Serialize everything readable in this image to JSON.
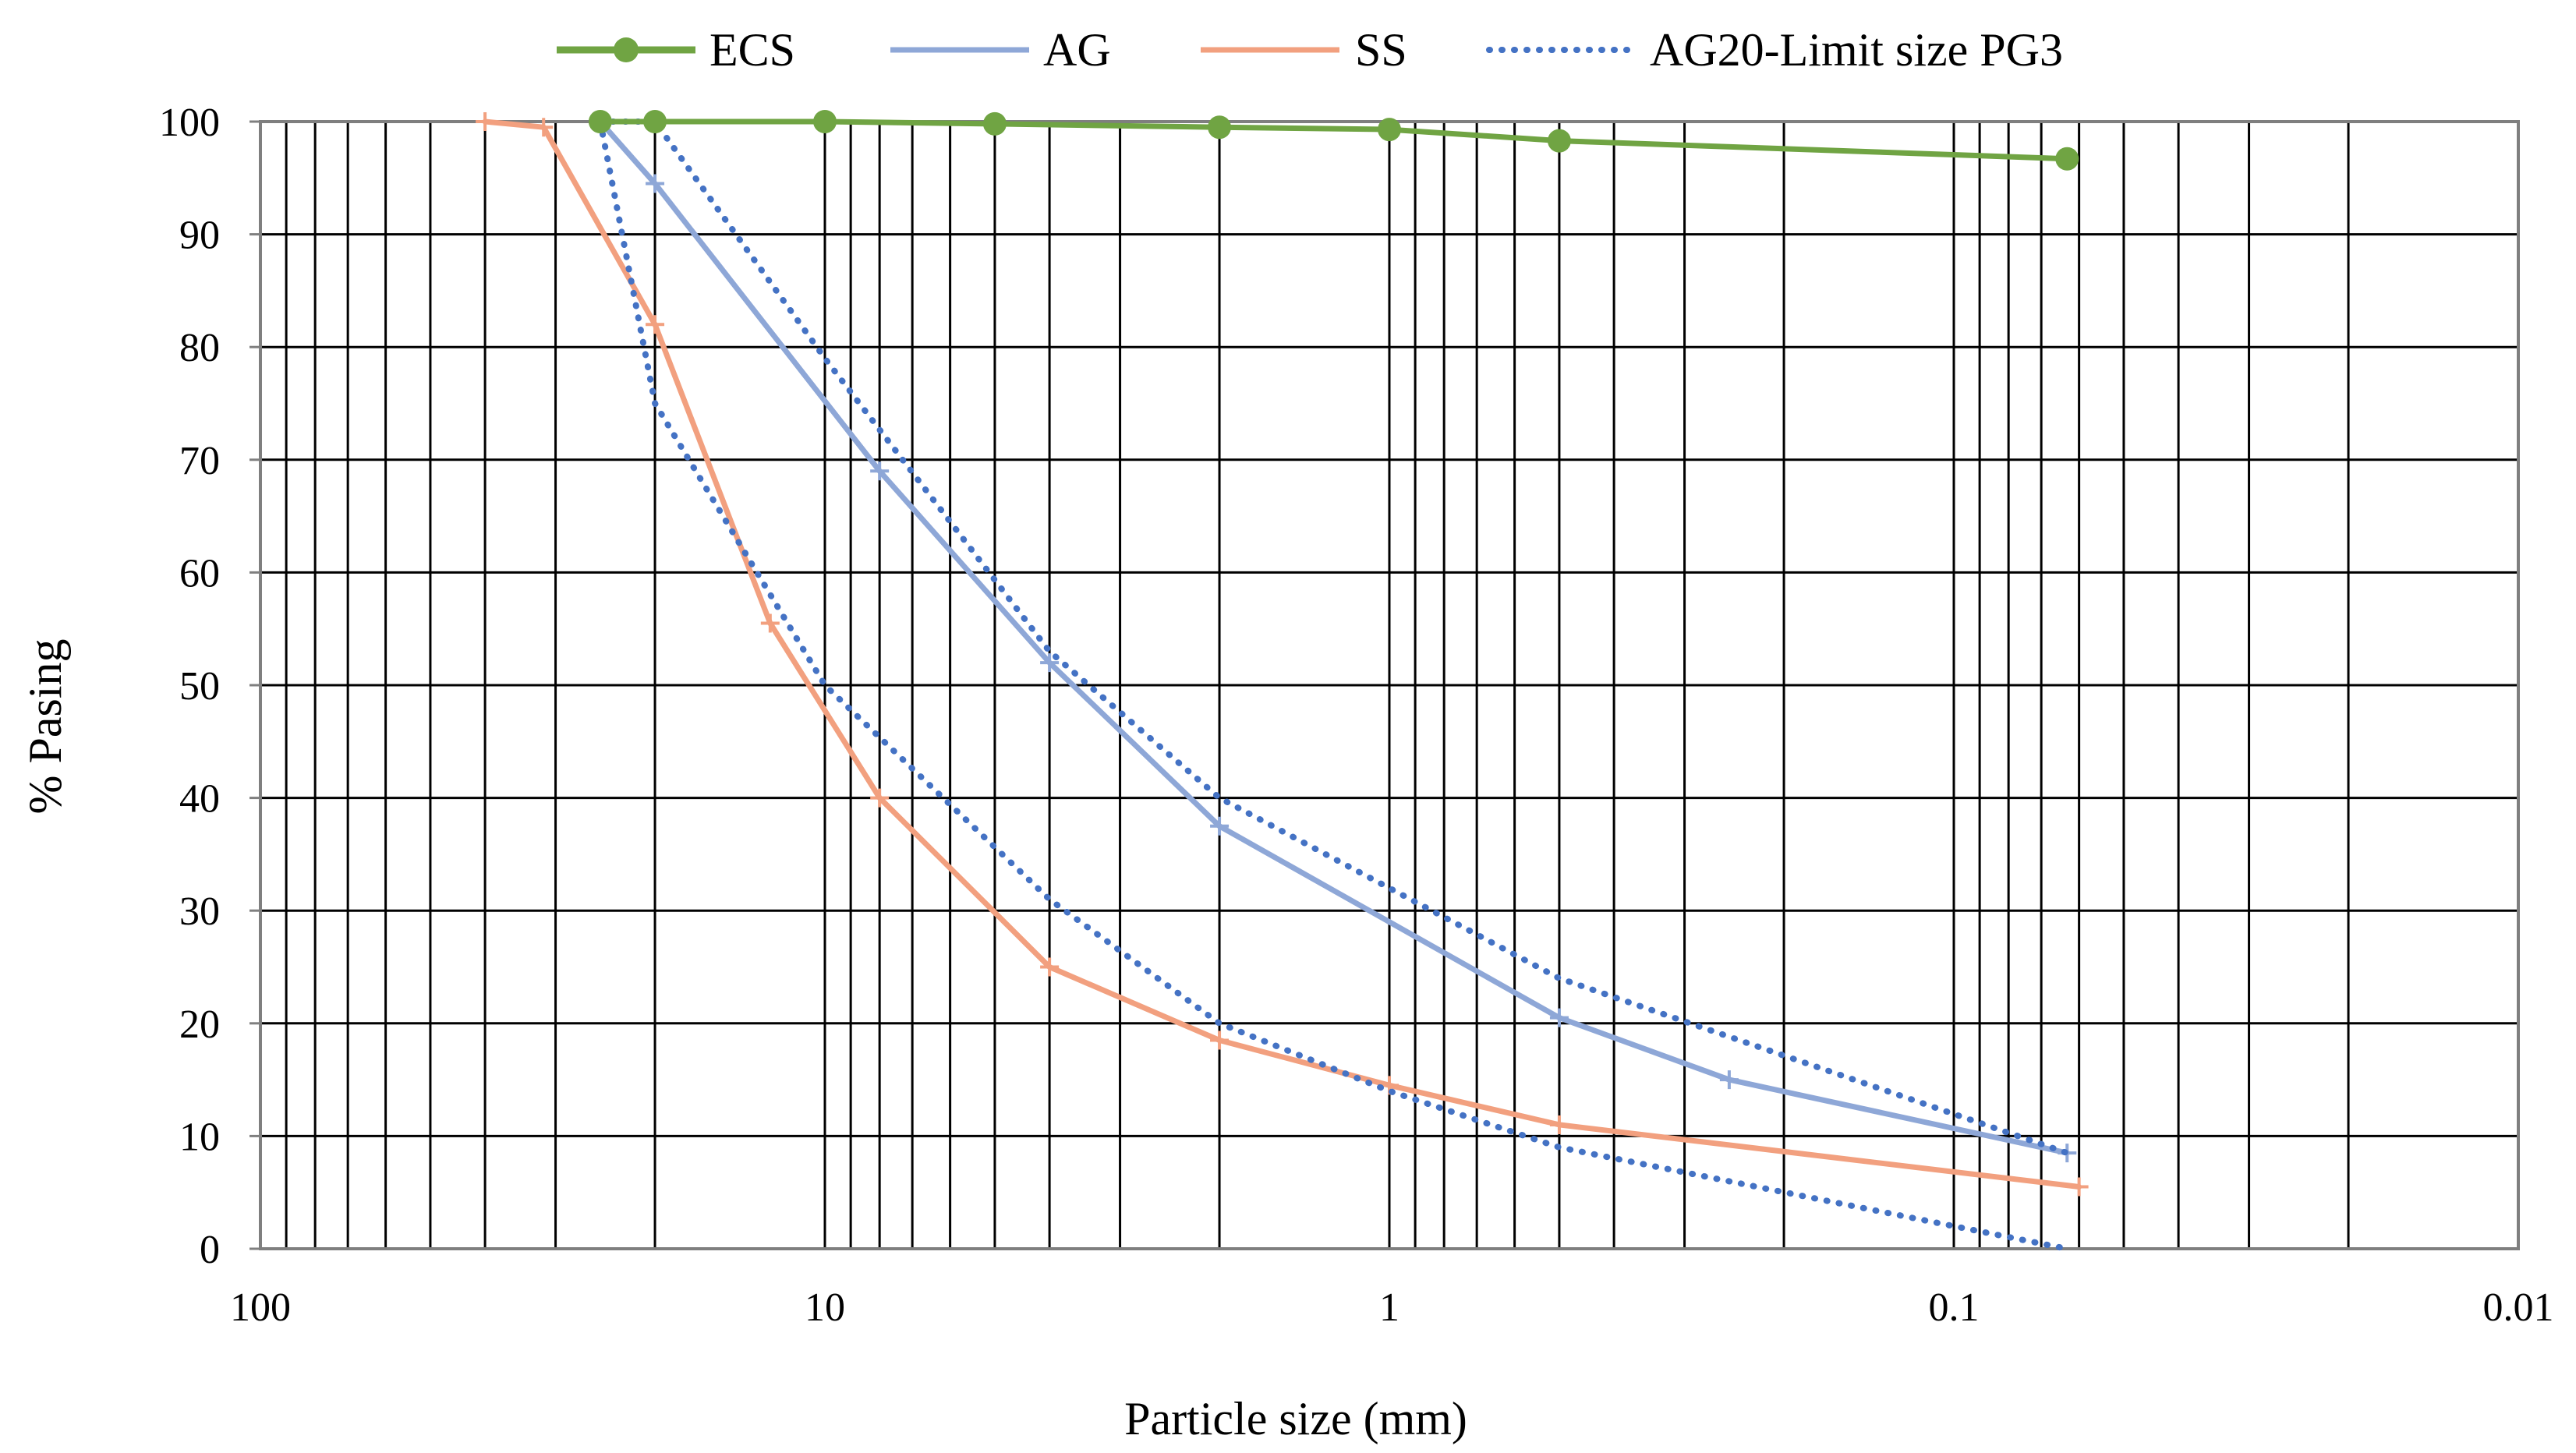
{
  "chart_data": {
    "type": "line",
    "xscale": "log",
    "x_reversed": true,
    "xlim": [
      100,
      0.01
    ],
    "ylim": [
      0,
      100
    ],
    "grid": true,
    "xlabel": "Particle size (mm)",
    "ylabel": "% Pasing",
    "legend_position": "top",
    "x_ticks": [
      {
        "value": 100,
        "label": "100"
      },
      {
        "value": 10,
        "label": "10"
      },
      {
        "value": 1,
        "label": "1"
      },
      {
        "value": 0.1,
        "label": "0.1"
      },
      {
        "value": 0.01,
        "label": "0.01"
      }
    ],
    "y_ticks": [
      {
        "value": 0,
        "label": "0"
      },
      {
        "value": 10,
        "label": "10"
      },
      {
        "value": 20,
        "label": "20"
      },
      {
        "value": 30,
        "label": "30"
      },
      {
        "value": 40,
        "label": "40"
      },
      {
        "value": 50,
        "label": "50"
      },
      {
        "value": 60,
        "label": "60"
      },
      {
        "value": 70,
        "label": "70"
      },
      {
        "value": 80,
        "label": "80"
      },
      {
        "value": 90,
        "label": "90"
      },
      {
        "value": 100,
        "label": "100"
      }
    ],
    "series": [
      {
        "name": "ECS",
        "color": "#70a443",
        "style": "solid",
        "marker": "circle",
        "points": [
          [
            25,
            100
          ],
          [
            20,
            100
          ],
          [
            10,
            100
          ],
          [
            5,
            99.8
          ],
          [
            2,
            99.5
          ],
          [
            1,
            99.3
          ],
          [
            0.5,
            98.3
          ],
          [
            0.063,
            96.7
          ]
        ]
      },
      {
        "name": "AG",
        "color": "#8ea7d7",
        "style": "solid",
        "marker": "plus",
        "points": [
          [
            25,
            100
          ],
          [
            20,
            94.5
          ],
          [
            8,
            69
          ],
          [
            4,
            52
          ],
          [
            2,
            37.5
          ],
          [
            0.5,
            20.5
          ],
          [
            0.25,
            15
          ],
          [
            0.063,
            8.5
          ]
        ]
      },
      {
        "name": "SS",
        "color": "#f2a07f",
        "style": "solid",
        "marker": "plus",
        "points": [
          [
            40,
            100
          ],
          [
            31.5,
            99.5
          ],
          [
            20,
            82
          ],
          [
            12.5,
            55.5
          ],
          [
            8,
            40
          ],
          [
            4,
            25
          ],
          [
            2,
            18.5
          ],
          [
            1,
            14.5
          ],
          [
            0.5,
            11
          ],
          [
            0.06,
            5.5
          ]
        ]
      },
      {
        "name": "AG20-Limit size PG3",
        "color": "#4472c4",
        "style": "dotted",
        "marker": "none",
        "segments": [
          [
            [
              25,
              100
            ],
            [
              20,
              100
            ],
            [
              10,
              79
            ],
            [
              4,
              53
            ],
            [
              2,
              40
            ],
            [
              1,
              32
            ],
            [
              0.5,
              24
            ],
            [
              0.063,
              8.5
            ]
          ],
          [
            [
              25,
              100
            ],
            [
              20,
              75
            ],
            [
              10,
              50
            ],
            [
              4,
              31
            ],
            [
              2,
              20
            ],
            [
              1,
              14
            ],
            [
              0.5,
              9
            ],
            [
              0.063,
              0
            ]
          ]
        ]
      }
    ]
  }
}
